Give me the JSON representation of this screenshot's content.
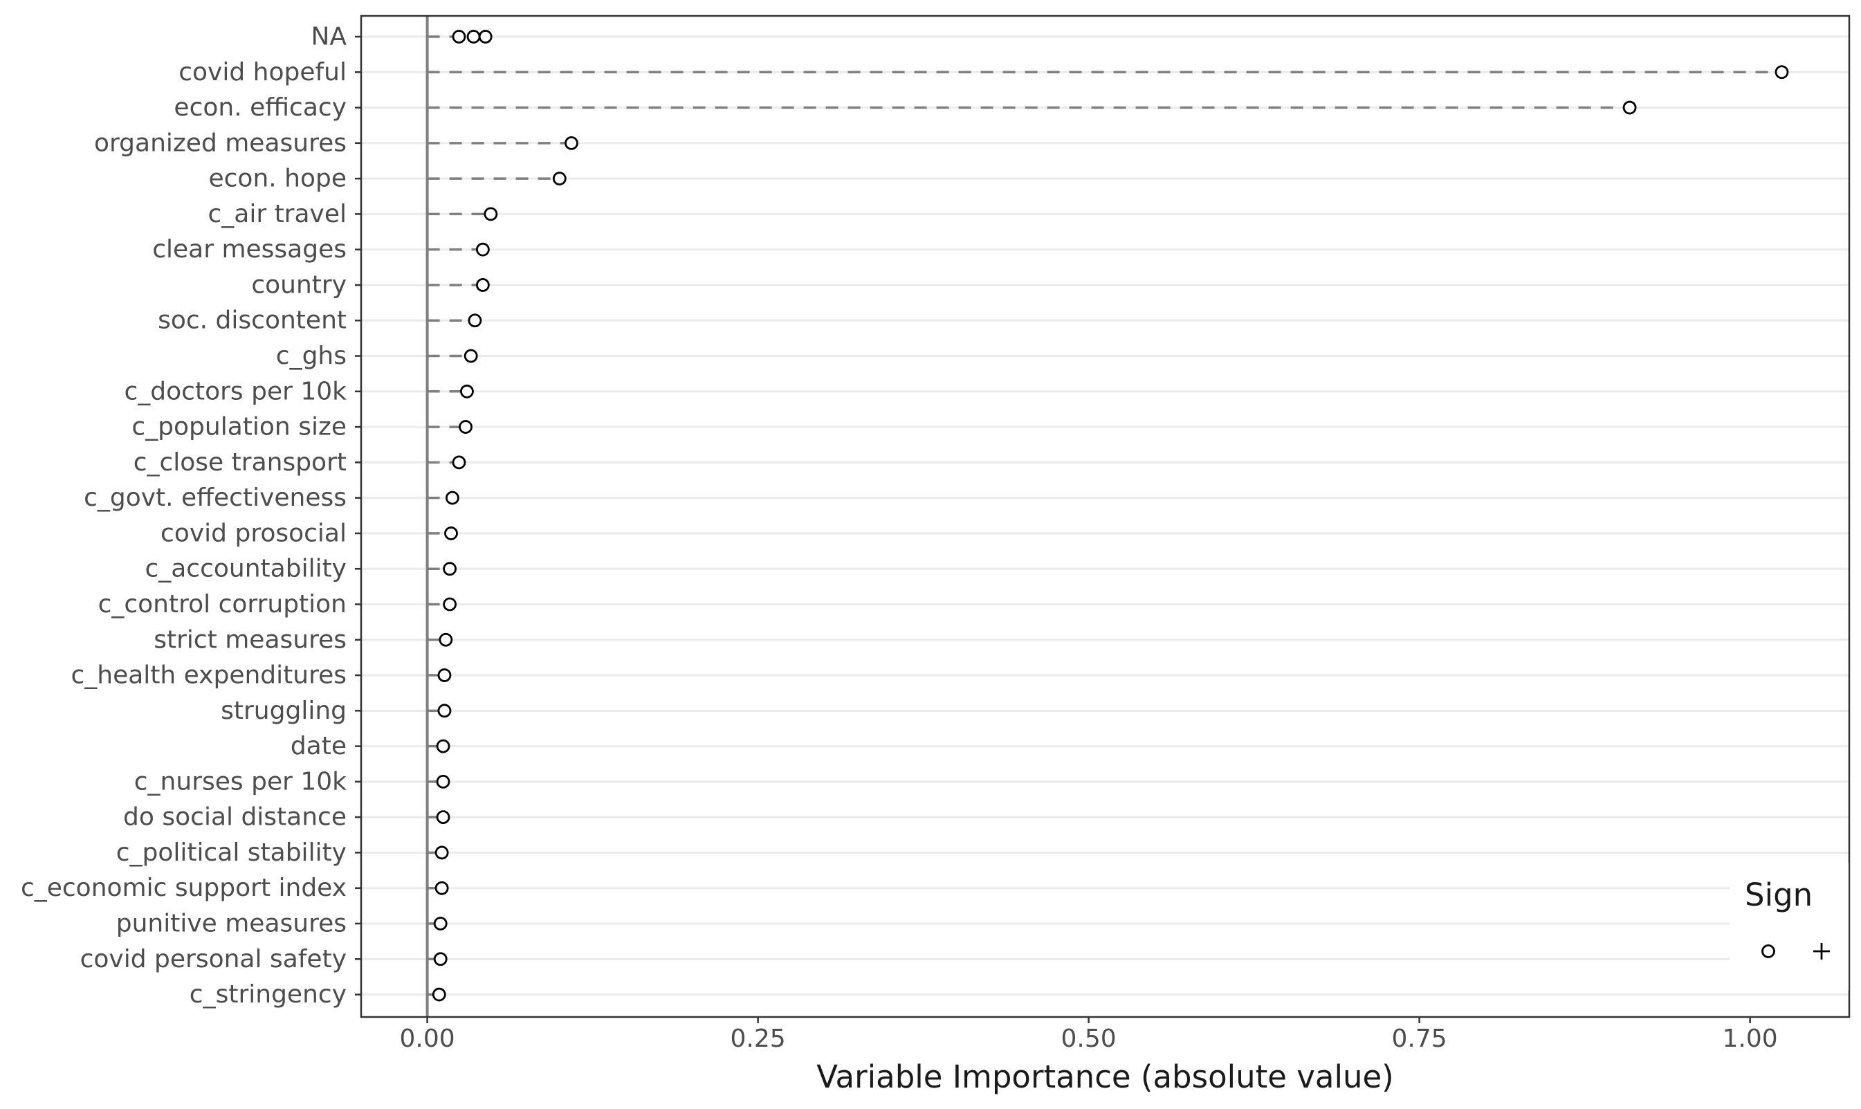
{
  "chart_data": {
    "type": "scatter",
    "xlabel": "Variable Importance (absolute value)",
    "ylabel": "",
    "xlim": [
      -0.05,
      1.075
    ],
    "x_ticks": [
      0.0,
      0.25,
      0.5,
      0.75,
      1.0
    ],
    "x_tick_labels": [
      "0.00",
      "0.25",
      "0.50",
      "0.75",
      "1.00"
    ],
    "grid": "horizontal major lines only",
    "reference_line_x": 0.0,
    "categories": [
      "NA",
      "covid hopeful",
      "econ. efficacy",
      "organized measures",
      "econ. hope",
      "c_air travel",
      "clear messages",
      "country",
      "soc. discontent",
      "c_ghs",
      "c_doctors per 10k",
      "c_population size",
      "c_close transport",
      "c_govt. effectiveness",
      "covid prosocial",
      "c_accountability",
      "c_control corruption",
      "strict measures",
      "c_health expenditures",
      "struggling",
      "date",
      "c_nurses per 10k",
      "do social distance",
      "c_political stability",
      "c_economic support index",
      "punitive measures",
      "covid personal safety",
      "c_stringency"
    ],
    "values": [
      [
        0.024,
        0.035,
        0.044
      ],
      [
        1.024
      ],
      [
        0.909
      ],
      [
        0.109
      ],
      [
        0.1
      ],
      [
        0.048
      ],
      [
        0.042
      ],
      [
        0.042
      ],
      [
        0.036
      ],
      [
        0.033
      ],
      [
        0.03
      ],
      [
        0.029
      ],
      [
        0.024
      ],
      [
        0.019
      ],
      [
        0.018
      ],
      [
        0.017
      ],
      [
        0.017
      ],
      [
        0.014
      ],
      [
        0.013
      ],
      [
        0.013
      ],
      [
        0.012
      ],
      [
        0.012
      ],
      [
        0.012
      ],
      [
        0.011
      ],
      [
        0.011
      ],
      [
        0.01
      ],
      [
        0.01
      ],
      [
        0.009
      ]
    ],
    "legend": {
      "title": "Sign",
      "position": "bottom-right",
      "items": [
        {
          "symbol": "circle",
          "label": ""
        },
        {
          "symbol": "plus",
          "label": ""
        }
      ]
    },
    "colors": {
      "grid": "#ebebeb",
      "panel_border": "#333333",
      "segment": "#7f7f7f",
      "zero_line": "#7f7f7f",
      "point": "#000000",
      "tick_text": "#4d4d4d"
    }
  }
}
